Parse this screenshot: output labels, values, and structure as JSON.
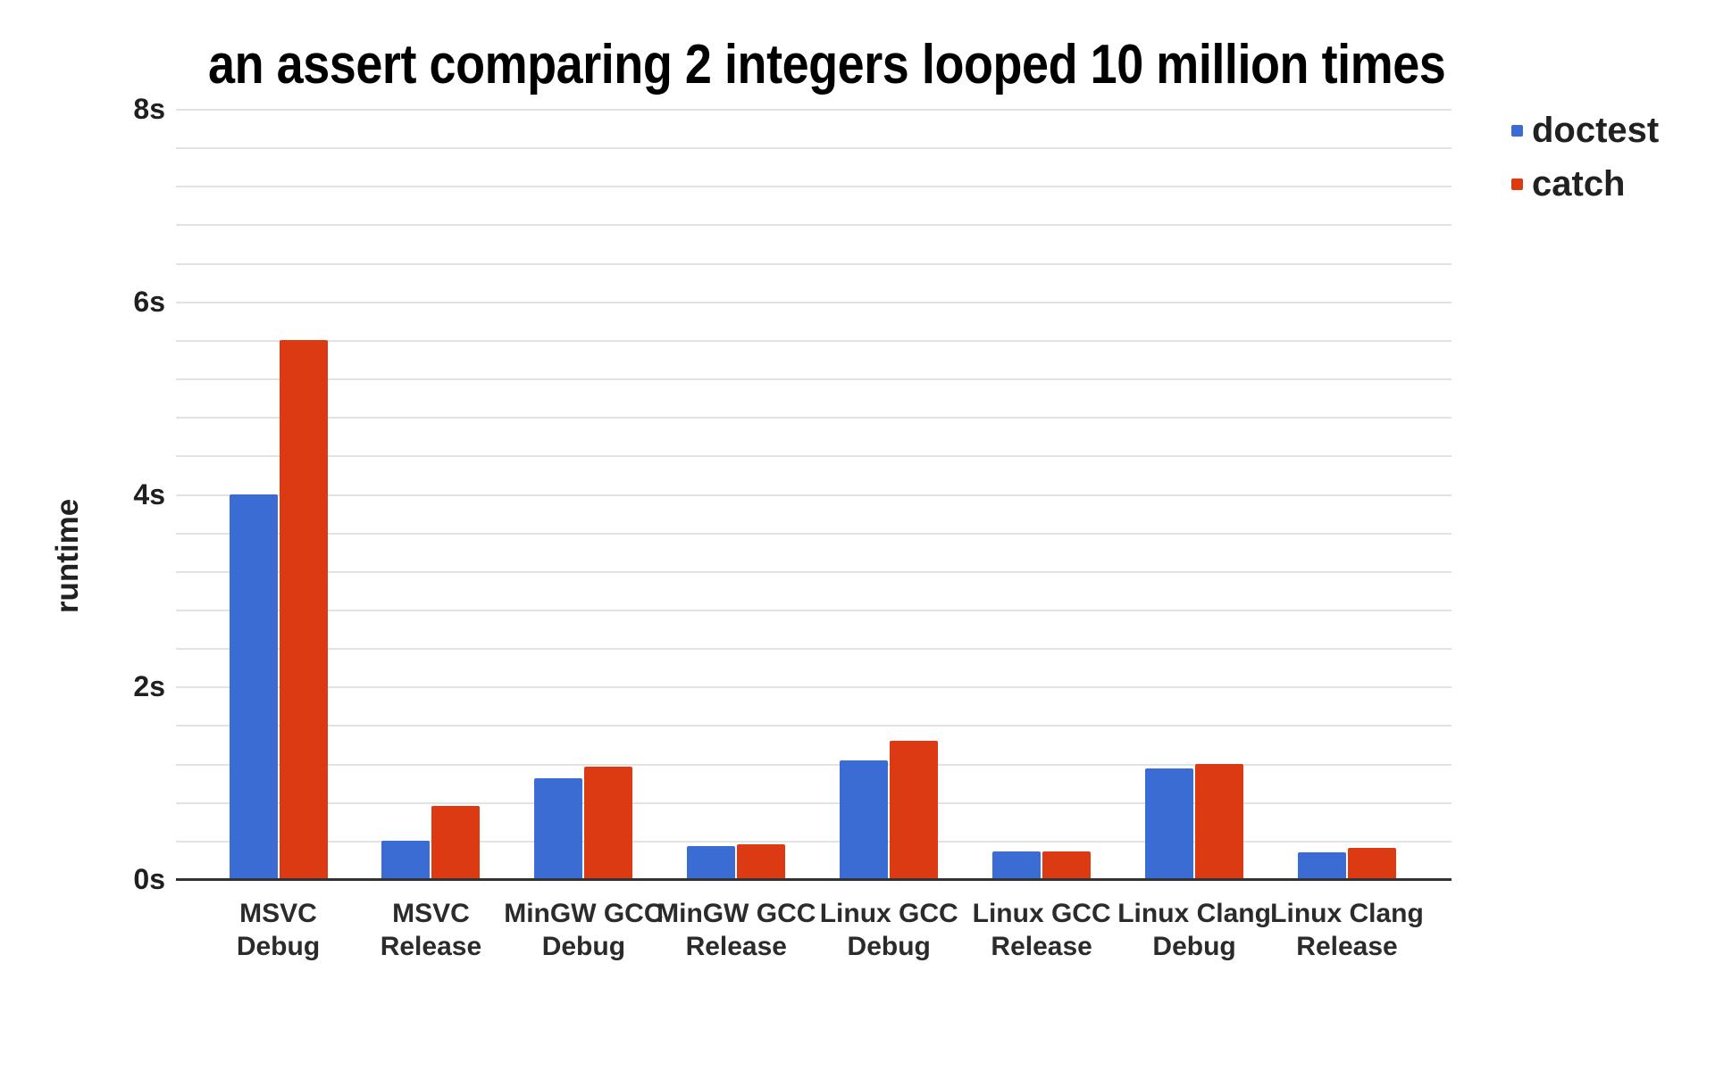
{
  "chart_data": {
    "type": "bar",
    "title": "an assert comparing 2 integers looped 10 million times",
    "ylabel": "runtime",
    "xlabel": "",
    "categories": [
      [
        "MSVC",
        "Debug"
      ],
      [
        "MSVC",
        "Release"
      ],
      [
        "MinGW GCC",
        "Debug"
      ],
      [
        "MinGW GCC",
        "Release"
      ],
      [
        "Linux GCC",
        "Debug"
      ],
      [
        "Linux GCC",
        "Release"
      ],
      [
        "Linux Clang",
        "Debug"
      ],
      [
        "Linux Clang",
        "Release"
      ]
    ],
    "series": [
      {
        "name": "doctest",
        "color": "#3b6cd4",
        "values": [
          4.0,
          0.4,
          1.05,
          0.34,
          1.23,
          0.29,
          1.15,
          0.28
        ]
      },
      {
        "name": "catch",
        "color": "#db3a12",
        "values": [
          5.6,
          0.76,
          1.17,
          0.36,
          1.44,
          0.29,
          1.2,
          0.32
        ]
      }
    ],
    "y_ticks": [
      {
        "label": "0s",
        "value": 0
      },
      {
        "label": "2s",
        "value": 2
      },
      {
        "label": "4s",
        "value": 4
      },
      {
        "label": "6s",
        "value": 6
      },
      {
        "label": "8s",
        "value": 8
      }
    ],
    "ylim": [
      0,
      8
    ],
    "minor_grid_step": 0.4,
    "grid": true,
    "legend_position": "top-right",
    "colors": {
      "grid": "#e2e2e2",
      "axis": "#333333",
      "text": "#212121"
    }
  }
}
